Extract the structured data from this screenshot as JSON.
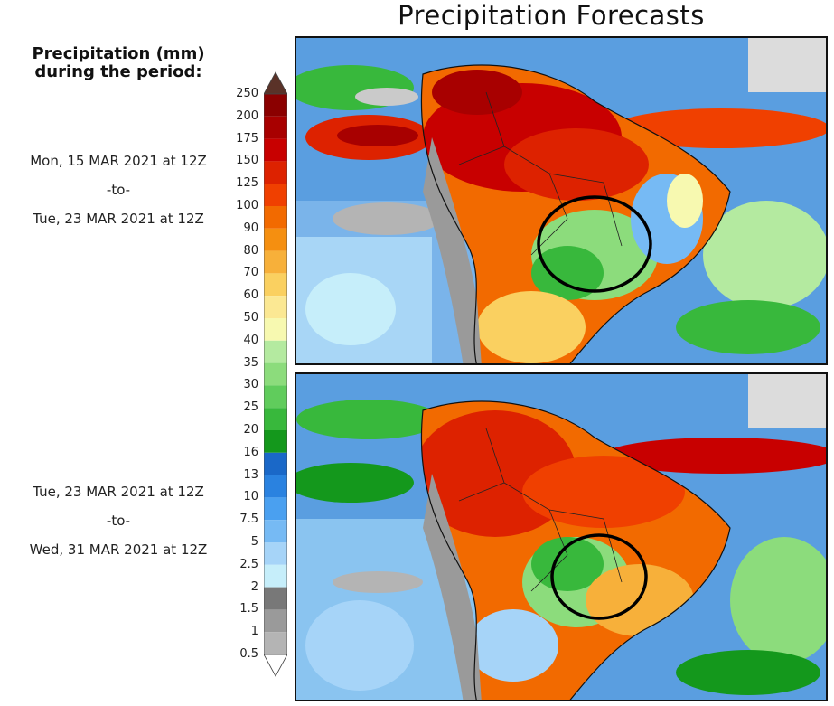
{
  "title": "Precipitation Forecasts",
  "legend": {
    "heading_line1": "Precipitation (mm)",
    "heading_line2": "during the period:",
    "ticks": [
      "250",
      "200",
      "175",
      "150",
      "125",
      "100",
      "90",
      "80",
      "70",
      "60",
      "50",
      "40",
      "35",
      "30",
      "25",
      "20",
      "16",
      "13",
      "10",
      "7.5",
      "5",
      "2.5",
      "2",
      "1.5",
      "1",
      "0.5"
    ],
    "colors": [
      "#7a1a10",
      "#8b0000",
      "#a80000",
      "#c80000",
      "#dd2200",
      "#f04000",
      "#f26a00",
      "#f58f10",
      "#f7b03a",
      "#fad060",
      "#fbe893",
      "#f7f9b0",
      "#b4eaa0",
      "#8cdc7c",
      "#60cc5c",
      "#38b83c",
      "#14981c",
      "#1a68c8",
      "#2a82e0",
      "#4aa0f0",
      "#76baf4",
      "#a6d4f8",
      "#c6eefa",
      "#787878",
      "#9a9a9a",
      "#b4b4b4",
      "#cacaca",
      "#dcdcdc"
    ],
    "top_arrow_color": "#5a3228"
  },
  "periods": [
    {
      "start": "Mon, 15 MAR 2021 at 12Z",
      "sep": "-to-",
      "end": "Tue, 23 MAR 2021 at 12Z"
    },
    {
      "start": "Tue, 23 MAR 2021 at 12Z",
      "sep": "-to-",
      "end": "Wed, 31 MAR 2021 at 12Z"
    }
  ],
  "maps": [
    {
      "name": "forecast-map-period-1",
      "region": "South America"
    },
    {
      "name": "forecast-map-period-2",
      "region": "South America"
    }
  ]
}
